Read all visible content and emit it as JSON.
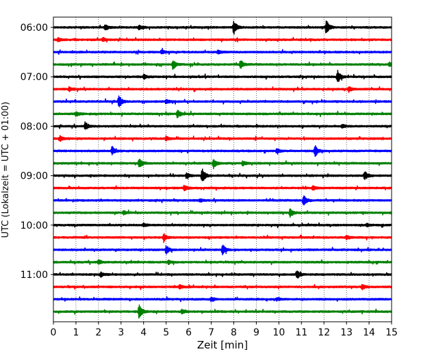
{
  "chart_data": {
    "type": "line",
    "title": "",
    "xlabel": "Zeit  [min]",
    "ylabel": "UTC (Lokalzeit = UTC + 01:00)",
    "xlim": [
      0,
      15
    ],
    "x_ticks": [
      "0",
      "1",
      "2",
      "3",
      "4",
      "5",
      "6",
      "7",
      "8",
      "9",
      "10",
      "11",
      "12",
      "13",
      "14",
      "15"
    ],
    "y_ticks": [
      "06:00",
      "07:00",
      "08:00",
      "09:00",
      "10:00",
      "11:00"
    ],
    "vertical_grid": true,
    "trace_interval_minutes": 15,
    "first_trace_time": "06:00",
    "trace_colors": [
      "#000000",
      "#ff0000",
      "#0000ff",
      "#008000"
    ],
    "traces": [
      {
        "start": "06:00",
        "color": "#000000",
        "events": [
          [
            2.3,
            0.4
          ],
          [
            3.8,
            0.3
          ],
          [
            8.0,
            1.0
          ],
          [
            12.1,
            1.0
          ]
        ]
      },
      {
        "start": "06:15",
        "color": "#ff0000",
        "events": [
          [
            0.2,
            0.3
          ],
          [
            2.2,
            0.25
          ]
        ]
      },
      {
        "start": "06:30",
        "color": "#0000ff",
        "events": [
          [
            4.8,
            0.3
          ],
          [
            7.3,
            0.3
          ]
        ]
      },
      {
        "start": "06:45",
        "color": "#008000",
        "events": [
          [
            5.3,
            0.7
          ],
          [
            8.3,
            0.6
          ],
          [
            14.9,
            0.3
          ]
        ]
      },
      {
        "start": "07:00",
        "color": "#000000",
        "events": [
          [
            4.0,
            0.3
          ],
          [
            12.6,
            0.9
          ]
        ]
      },
      {
        "start": "07:15",
        "color": "#ff0000",
        "events": [
          [
            0.7,
            0.3
          ],
          [
            13.1,
            0.4
          ]
        ]
      },
      {
        "start": "07:30",
        "color": "#0000ff",
        "events": [
          [
            2.9,
            0.9
          ],
          [
            5.0,
            0.3
          ]
        ]
      },
      {
        "start": "07:45",
        "color": "#008000",
        "events": [
          [
            1.0,
            0.3
          ],
          [
            5.5,
            0.5
          ]
        ]
      },
      {
        "start": "08:00",
        "color": "#000000",
        "events": [
          [
            1.4,
            0.5
          ],
          [
            12.8,
            0.25
          ]
        ]
      },
      {
        "start": "08:15",
        "color": "#ff0000",
        "events": [
          [
            0.3,
            0.4
          ],
          [
            5.0,
            0.25
          ]
        ]
      },
      {
        "start": "08:30",
        "color": "#0000ff",
        "events": [
          [
            2.6,
            0.6
          ],
          [
            9.9,
            0.3
          ],
          [
            11.6,
            0.8
          ]
        ]
      },
      {
        "start": "08:45",
        "color": "#008000",
        "events": [
          [
            3.8,
            0.7
          ],
          [
            7.1,
            0.7
          ],
          [
            8.4,
            0.3
          ]
        ]
      },
      {
        "start": "09:00",
        "color": "#000000",
        "events": [
          [
            5.9,
            0.4
          ],
          [
            6.6,
            1.0
          ],
          [
            13.8,
            0.6
          ]
        ]
      },
      {
        "start": "09:15",
        "color": "#ff0000",
        "events": [
          [
            5.8,
            0.4
          ],
          [
            11.5,
            0.3
          ]
        ]
      },
      {
        "start": "09:30",
        "color": "#0000ff",
        "events": [
          [
            11.1,
            0.7
          ],
          [
            6.5,
            0.2
          ]
        ]
      },
      {
        "start": "09:45",
        "color": "#008000",
        "events": [
          [
            10.5,
            0.6
          ],
          [
            3.1,
            0.25
          ]
        ]
      },
      {
        "start": "10:00",
        "color": "#000000",
        "events": [
          [
            4.0,
            0.25
          ],
          [
            13.9,
            0.25
          ]
        ]
      },
      {
        "start": "10:15",
        "color": "#ff0000",
        "events": [
          [
            4.9,
            0.5
          ],
          [
            13.0,
            0.25
          ]
        ]
      },
      {
        "start": "10:30",
        "color": "#0000ff",
        "events": [
          [
            5.0,
            0.6
          ],
          [
            7.5,
            0.7
          ]
        ]
      },
      {
        "start": "10:45",
        "color": "#008000",
        "events": [
          [
            2.0,
            0.3
          ],
          [
            5.1,
            0.25
          ]
        ]
      },
      {
        "start": "11:00",
        "color": "#000000",
        "events": [
          [
            2.1,
            0.3
          ],
          [
            10.8,
            0.6
          ]
        ]
      },
      {
        "start": "11:15",
        "color": "#ff0000",
        "events": [
          [
            5.6,
            0.3
          ],
          [
            13.7,
            0.35
          ]
        ]
      },
      {
        "start": "11:30",
        "color": "#0000ff",
        "events": [
          [
            7.0,
            0.3
          ],
          [
            9.9,
            0.2
          ]
        ]
      },
      {
        "start": "11:45",
        "color": "#008000",
        "events": [
          [
            3.8,
            1.0
          ],
          [
            5.7,
            0.3
          ]
        ]
      }
    ]
  }
}
